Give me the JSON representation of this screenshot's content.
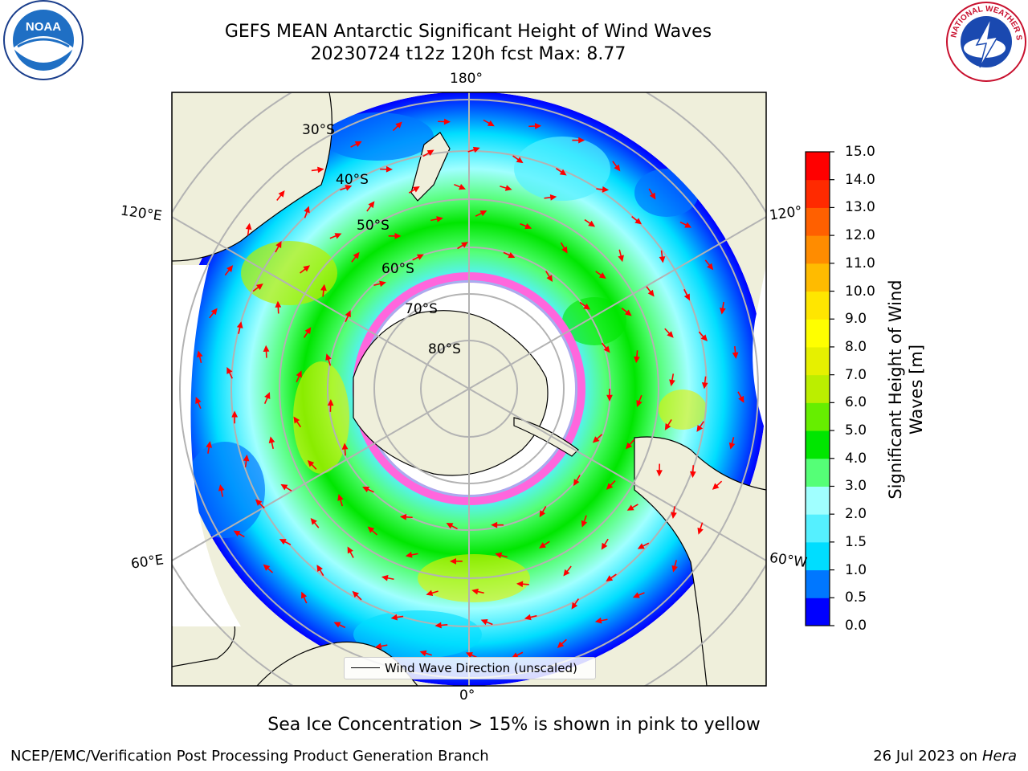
{
  "title": {
    "line1": "GEFS MEAN Antarctic Significant Height of Wind Waves",
    "line2": "20230724 t12z 120h fcst   Max: 8.77"
  },
  "logos": {
    "noaa_text": "NOAA",
    "nws_text": "NATIONAL WEATHER SERVICE"
  },
  "map": {
    "lon_labels": {
      "top": "180°",
      "bottom": "0°",
      "upper_left": "120°E",
      "upper_right": "120°",
      "lower_left": "60°E",
      "lower_right": "60°W"
    },
    "lat_labels": [
      "30°S",
      "40°S",
      "50°S",
      "60°S",
      "70°S",
      "80°S"
    ],
    "legend_label": "Wind Wave Direction (unscaled)"
  },
  "colorbar": {
    "label": "Significant Height of Wind Waves [m]",
    "ticks": [
      "0.0",
      "0.5",
      "1.0",
      "1.5",
      "2.0",
      "3.0",
      "4.0",
      "5.0",
      "6.0",
      "7.0",
      "8.0",
      "9.0",
      "10.0",
      "11.0",
      "12.0",
      "13.0",
      "14.0",
      "15.0"
    ],
    "colors": [
      "#0000ff",
      "#0077ff",
      "#00ddff",
      "#55f0ff",
      "#a0ffff",
      "#55ff77",
      "#00e600",
      "#66ee00",
      "#bbee00",
      "#e6f000",
      "#ffff00",
      "#ffe600",
      "#ffbb00",
      "#ff8c00",
      "#ff6000",
      "#ff2a00",
      "#ff0000"
    ]
  },
  "caption": "Sea Ice Concentration > 15% is shown in pink to yellow",
  "footer": {
    "left": "NCEP/EMC/Verification Post Processing Product Generation Branch",
    "right_prefix": "26 Jul 2023 on ",
    "right_machine": "Hera"
  }
}
